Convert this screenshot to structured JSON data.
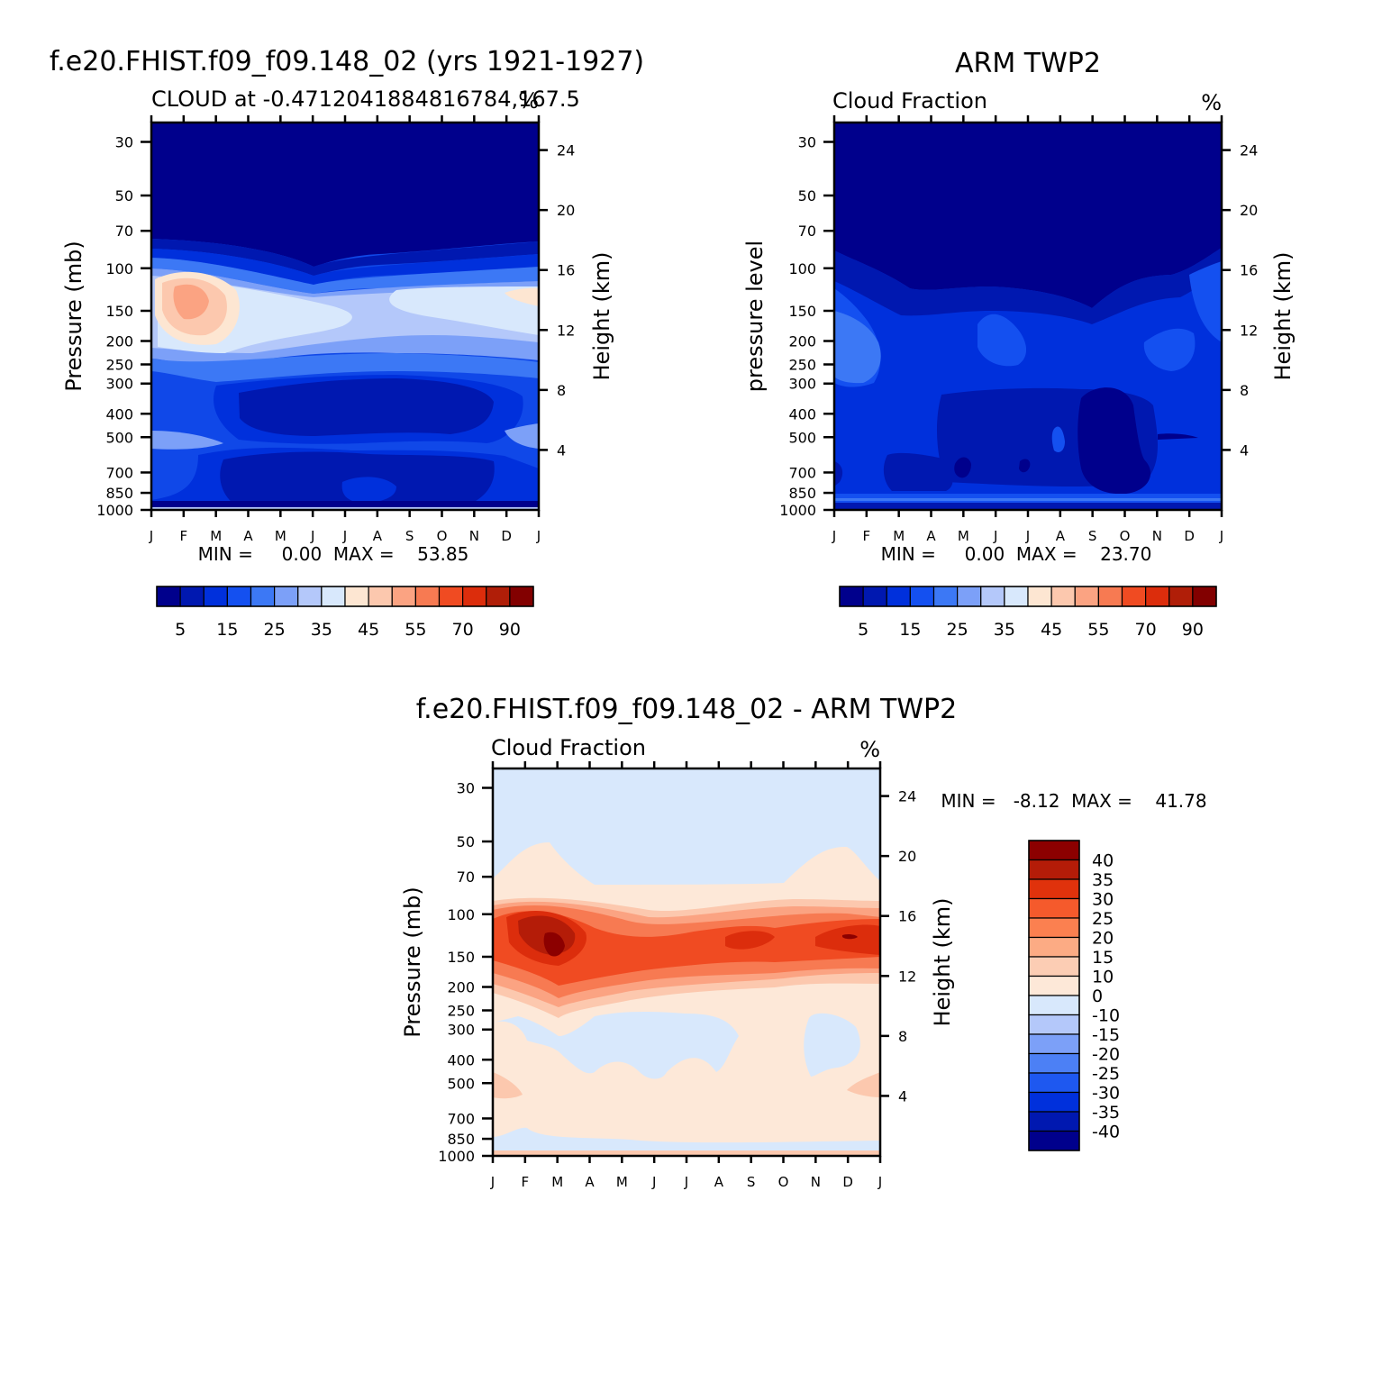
{
  "chart_data": [
    {
      "type": "heatmap",
      "title": "f.e20.FHIST.f09_f09.148_02 (yrs 1921-1927)",
      "subtitle_left": "CLOUD at -0.4712041884816784,167.5",
      "units": "%",
      "ylabel": "Pressure (mb)",
      "ylabel_right": "Height (km)",
      "x_ticks": [
        "J",
        "F",
        "M",
        "A",
        "M",
        "J",
        "J",
        "A",
        "S",
        "O",
        "N",
        "D",
        "J"
      ],
      "y_ticks": [
        "30",
        "50",
        "70",
        "100",
        "150",
        "200",
        "250",
        "300",
        "400",
        "500",
        "700",
        "850",
        "1000"
      ],
      "y_ticks_right": [
        "24",
        "20",
        "16",
        "12",
        "8",
        "4"
      ],
      "stats": "MIN =     0.00  MAX =    53.85",
      "legend": {
        "labels": [
          "5",
          "15",
          "25",
          "35",
          "45",
          "55",
          "70",
          "90"
        ],
        "colors": [
          "#00008c",
          "#0018b0",
          "#0030dc",
          "#1450f0",
          "#3c78f5",
          "#7ca0f8",
          "#b4c8fa",
          "#d8e8fc",
          "#fde6d2",
          "#fcc8ae",
          "#fba382",
          "#f77a52",
          "#f04b22",
          "#dc2d0c",
          "#b01e08",
          "#820000"
        ]
      }
    },
    {
      "type": "heatmap",
      "title": "ARM TWP2",
      "subtitle_left": "Cloud Fraction",
      "units": "%",
      "ylabel": "pressure level",
      "ylabel_right": "Height (km)",
      "x_ticks": [
        "J",
        "F",
        "M",
        "A",
        "M",
        "J",
        "J",
        "A",
        "S",
        "O",
        "N",
        "D",
        "J"
      ],
      "y_ticks": [
        "30",
        "50",
        "70",
        "100",
        "150",
        "200",
        "250",
        "300",
        "400",
        "500",
        "700",
        "850",
        "1000"
      ],
      "y_ticks_right": [
        "24",
        "20",
        "16",
        "12",
        "8",
        "4"
      ],
      "stats": "MIN =     0.00  MAX =    23.70",
      "legend": {
        "labels": [
          "5",
          "15",
          "25",
          "35",
          "45",
          "55",
          "70",
          "90"
        ],
        "colors": [
          "#00008c",
          "#0018b0",
          "#0030dc",
          "#1450f0",
          "#3c78f5",
          "#7ca0f8",
          "#b4c8fa",
          "#d8e8fc",
          "#fde6d2",
          "#fcc8ae",
          "#fba382",
          "#f77a52",
          "#f04b22",
          "#dc2d0c",
          "#b01e08",
          "#820000"
        ]
      }
    },
    {
      "type": "heatmap",
      "title": "f.e20.FHIST.f09_f09.148_02 - ARM TWP2",
      "subtitle_left": "Cloud Fraction",
      "units": "%",
      "ylabel": "Pressure (mb)",
      "ylabel_right": "Height (km)",
      "x_ticks": [
        "J",
        "F",
        "M",
        "A",
        "M",
        "J",
        "J",
        "A",
        "S",
        "O",
        "N",
        "D",
        "J"
      ],
      "y_ticks": [
        "30",
        "50",
        "70",
        "100",
        "150",
        "200",
        "250",
        "300",
        "400",
        "500",
        "700",
        "850",
        "1000"
      ],
      "y_ticks_right": [
        "24",
        "20",
        "16",
        "12",
        "8",
        "4"
      ],
      "stats": "MIN =   -8.12  MAX =    41.78",
      "legend": {
        "labels": [
          "40",
          "35",
          "30",
          "25",
          "20",
          "15",
          "10",
          "0",
          "-10",
          "-15",
          "-20",
          "-25",
          "-30",
          "-35",
          "-40"
        ],
        "colors": [
          "#8c0000",
          "#b41c08",
          "#e0320c",
          "#f55a2c",
          "#fb8050",
          "#fcab84",
          "#fccdb4",
          "#fde8d8",
          "#d8e8fc",
          "#b4c8fa",
          "#7ca0f8",
          "#4c80f5",
          "#1e58f0",
          "#0030dc",
          "#0018b0",
          "#00008c"
        ]
      }
    }
  ]
}
